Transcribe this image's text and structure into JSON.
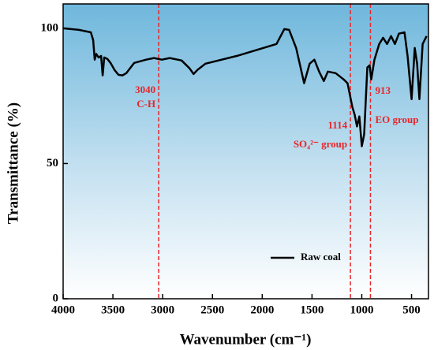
{
  "chart_data": {
    "type": "line",
    "x_label": "Wavenumber (cm⁻¹)",
    "y_label": "Transmittance (%)",
    "xlim": [
      4000,
      330
    ],
    "ylim": [
      0,
      109
    ],
    "xticks": [
      4000,
      3500,
      3000,
      2500,
      2000,
      1500,
      1000,
      500
    ],
    "yticks": [
      0,
      50,
      100
    ],
    "legend": "lower right",
    "x": [
      4000,
      3841,
      3722,
      3698,
      3683,
      3667,
      3643,
      3619,
      3603,
      3587,
      3556,
      3524,
      3484,
      3444,
      3405,
      3365,
      3286,
      3167,
      3087,
      3008,
      2929,
      2810,
      2730,
      2690,
      2651,
      2571,
      2254,
      1857,
      1778,
      1730,
      1659,
      1579,
      1524,
      1476,
      1429,
      1381,
      1341,
      1262,
      1183,
      1143,
      1095,
      1071,
      1048,
      1024,
      1000,
      976,
      944,
      921,
      905,
      873,
      825,
      786,
      746,
      706,
      667,
      627,
      571,
      540,
      500,
      468,
      444,
      421,
      389,
      349
    ],
    "series": [
      {
        "name": "Raw coal",
        "color": "#000000",
        "values": [
          100,
          99.4,
          98.5,
          95.6,
          88.4,
          90.5,
          89.2,
          89.8,
          82.6,
          89.2,
          88.7,
          87.2,
          84.6,
          82.8,
          82.6,
          83.4,
          87.2,
          88.4,
          89.0,
          88.4,
          89.0,
          88.1,
          85.2,
          83.1,
          84.6,
          86.9,
          89.8,
          94.2,
          99.7,
          99.4,
          92.7,
          79.7,
          86.9,
          88.4,
          84.0,
          80.5,
          84.0,
          83.4,
          81.1,
          79.7,
          70.9,
          68.0,
          63.7,
          67.4,
          56.4,
          60.8,
          85.5,
          86.3,
          81.1,
          88.4,
          94.2,
          96.5,
          94.2,
          97.1,
          94.2,
          98.0,
          98.5,
          89.8,
          73.8,
          92.7,
          86.9,
          73.8,
          94.2,
          97.1
        ]
      }
    ],
    "annotations": [
      {
        "x": 3040,
        "color": "#e8262a",
        "lines": [
          "3040",
          "C-H"
        ]
      },
      {
        "x": 1114,
        "color": "#e8262a",
        "lines": [
          "1114",
          "SO₄²⁻ group"
        ]
      },
      {
        "x": 913,
        "color": "#e8262a",
        "lines": [
          "913",
          "EO group"
        ]
      }
    ]
  }
}
